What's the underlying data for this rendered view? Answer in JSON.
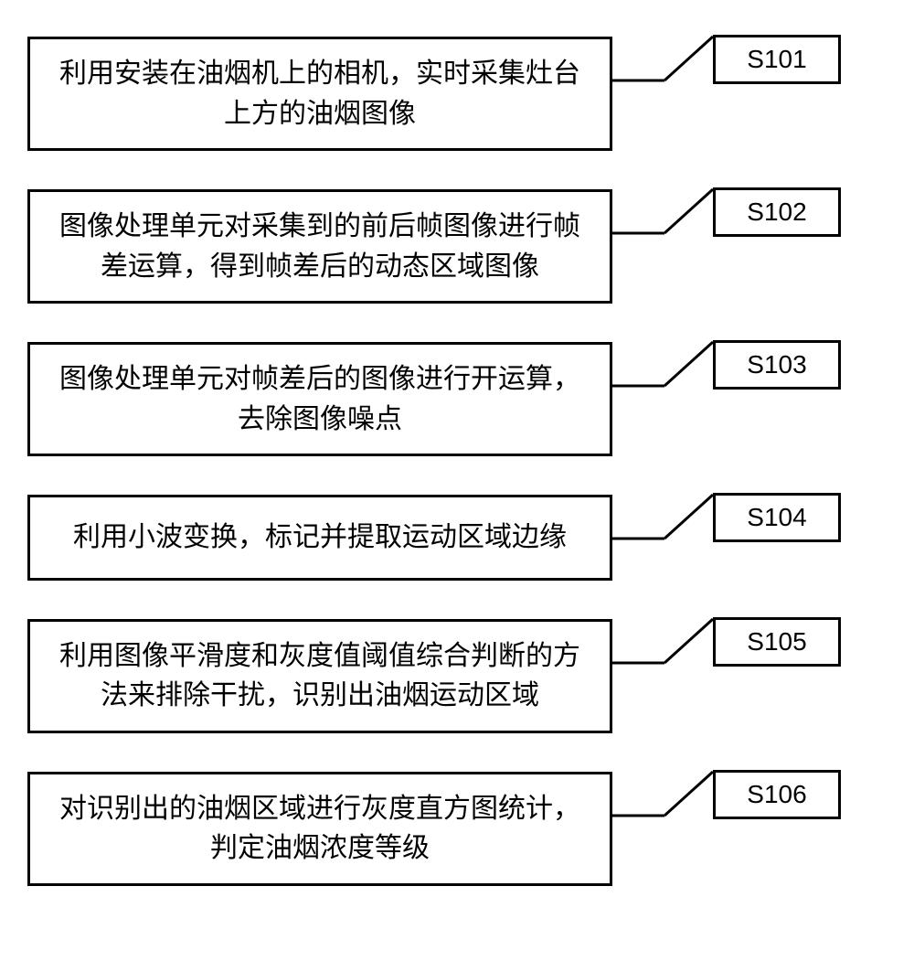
{
  "diagram": {
    "type": "flowchart",
    "background_color": "#ffffff",
    "border_color": "#000000",
    "text_color": "#000000",
    "border_width": 3,
    "step_font_size": 30,
    "label_font_size": 28,
    "step_box_width": 640,
    "label_box_width": 140,
    "connector_width": 110,
    "steps": [
      {
        "id": "S101",
        "text": "利用安装在油烟机上的相机，实时采集灶台上方的油烟图像",
        "lines": 2
      },
      {
        "id": "S102",
        "text": "图像处理单元对采集到的前后帧图像进行帧差运算，得到帧差后的动态区域图像",
        "lines": 2
      },
      {
        "id": "S103",
        "text": "图像处理单元对帧差后的图像进行开运算，去除图像噪点",
        "lines": 2
      },
      {
        "id": "S104",
        "text": "利用小波变换，标记并提取运动区域边缘",
        "lines": 1
      },
      {
        "id": "S105",
        "text": "利用图像平滑度和灰度值阈值综合判断的方法来排除干扰，识别出油烟运动区域",
        "lines": 2
      },
      {
        "id": "S106",
        "text": "对识别出的油烟区域进行灰度直方图统计，判定油烟浓度等级",
        "lines": 2
      }
    ]
  }
}
